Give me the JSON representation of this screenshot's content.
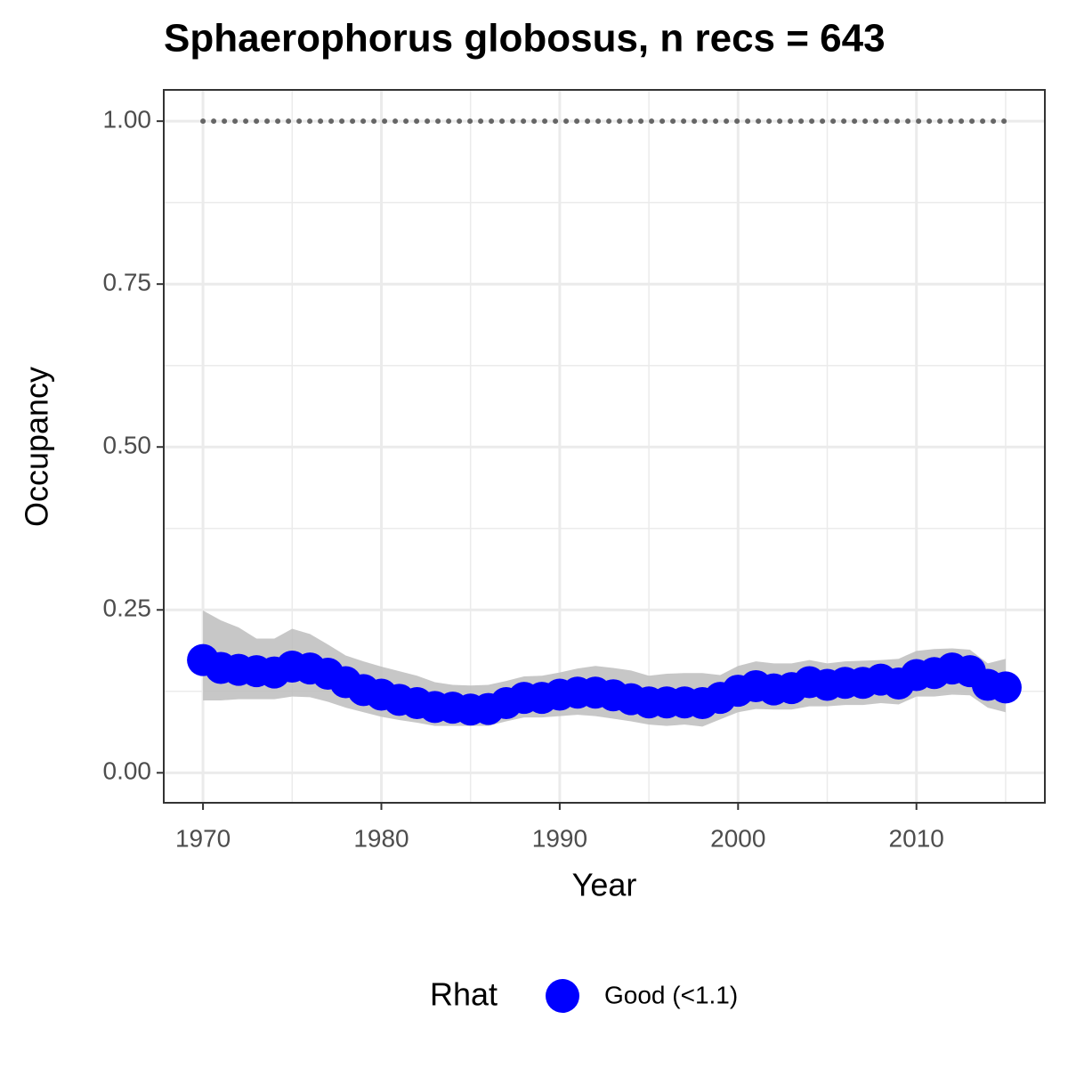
{
  "chart_data": {
    "type": "line",
    "title": "Sphaerophorus globosus, n recs = 643",
    "x_label": "Year",
    "y_label": "Occupancy",
    "x": [
      1970,
      1971,
      1972,
      1973,
      1974,
      1975,
      1976,
      1977,
      1978,
      1979,
      1980,
      1981,
      1982,
      1983,
      1984,
      1985,
      1986,
      1987,
      1988,
      1989,
      1990,
      1991,
      1992,
      1993,
      1994,
      1995,
      1996,
      1997,
      1998,
      1999,
      2000,
      2001,
      2002,
      2003,
      2004,
      2005,
      2006,
      2007,
      2008,
      2009,
      2010,
      2011,
      2012,
      2013,
      2014,
      2015
    ],
    "series": [
      {
        "name": "Good (<1.1)",
        "color": "#0000ff",
        "band_color": "#bdbdbd",
        "values": [
          0.173,
          0.161,
          0.158,
          0.156,
          0.154,
          0.163,
          0.16,
          0.152,
          0.139,
          0.127,
          0.12,
          0.112,
          0.107,
          0.101,
          0.1,
          0.097,
          0.098,
          0.107,
          0.115,
          0.115,
          0.12,
          0.123,
          0.123,
          0.119,
          0.113,
          0.108,
          0.108,
          0.108,
          0.107,
          0.115,
          0.126,
          0.133,
          0.128,
          0.13,
          0.139,
          0.135,
          0.138,
          0.138,
          0.143,
          0.137,
          0.15,
          0.153,
          0.16,
          0.156,
          0.135,
          0.131
        ],
        "upper": [
          0.249,
          0.234,
          0.223,
          0.206,
          0.206,
          0.221,
          0.213,
          0.197,
          0.18,
          0.171,
          0.163,
          0.156,
          0.149,
          0.139,
          0.135,
          0.134,
          0.135,
          0.141,
          0.148,
          0.149,
          0.154,
          0.16,
          0.164,
          0.161,
          0.157,
          0.149,
          0.152,
          0.153,
          0.153,
          0.15,
          0.164,
          0.171,
          0.168,
          0.168,
          0.173,
          0.168,
          0.171,
          0.172,
          0.173,
          0.175,
          0.187,
          0.19,
          0.191,
          0.189,
          0.168,
          0.175
        ],
        "lower": [
          0.111,
          0.111,
          0.113,
          0.113,
          0.113,
          0.117,
          0.116,
          0.109,
          0.1,
          0.093,
          0.086,
          0.081,
          0.077,
          0.072,
          0.072,
          0.072,
          0.072,
          0.079,
          0.085,
          0.085,
          0.087,
          0.089,
          0.087,
          0.083,
          0.079,
          0.074,
          0.072,
          0.074,
          0.071,
          0.082,
          0.093,
          0.098,
          0.097,
          0.097,
          0.102,
          0.102,
          0.104,
          0.104,
          0.107,
          0.105,
          0.117,
          0.117,
          0.12,
          0.119,
          0.1,
          0.093
        ]
      }
    ],
    "reference_line": {
      "value": 1,
      "color": "#666666"
    },
    "legend_title": "Rhat",
    "legend_position": "bottom",
    "xlim": [
      1967.8,
      2017.2
    ],
    "xticks": [
      1970,
      1980,
      1990,
      2000,
      2010
    ],
    "minor_xticks": [
      1975,
      1985,
      1995,
      2005,
      2015
    ],
    "ylim": [
      -0.046,
      1.048
    ],
    "yticks": [
      {
        "value": 0,
        "label": "0.00"
      },
      {
        "value": 0.25,
        "label": "0.25"
      },
      {
        "value": 0.5,
        "label": "0.50"
      },
      {
        "value": 0.75,
        "label": "0.75"
      },
      {
        "value": 1,
        "label": "1.00"
      }
    ],
    "minor_yticks": [
      0.125,
      0.375,
      0.625,
      0.875
    ],
    "grid": true
  }
}
